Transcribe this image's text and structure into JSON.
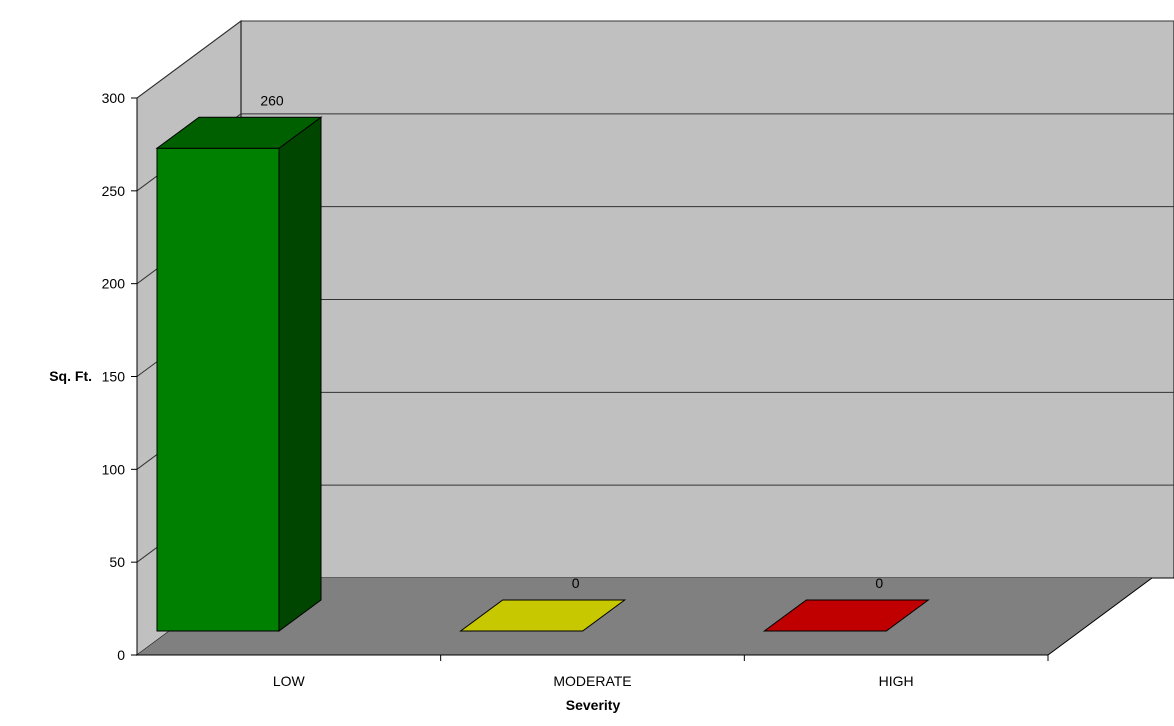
{
  "chart_data": {
    "type": "bar",
    "style": "3d",
    "categories": [
      "LOW",
      "MODERATE",
      "HIGH"
    ],
    "values": [
      260,
      0,
      0
    ],
    "data_labels": [
      "260",
      "0",
      "0"
    ],
    "bar_colors": [
      "#008000",
      "#c8c800",
      "#c00000"
    ],
    "ylabel": "Sq. Ft.",
    "xlabel": "Severity",
    "ylim": [
      0,
      300
    ],
    "yticks": [
      0,
      50,
      100,
      150,
      200,
      250,
      300
    ],
    "ytick_labels": [
      "0",
      "50",
      "100",
      "150",
      "200",
      "250",
      "300"
    ],
    "grid": true,
    "legend": "none"
  },
  "colors": {
    "back_wall": "#c0c0c0",
    "side_wall": "#c0c0c0",
    "floor": "#808080",
    "grid_line": "#333333"
  }
}
